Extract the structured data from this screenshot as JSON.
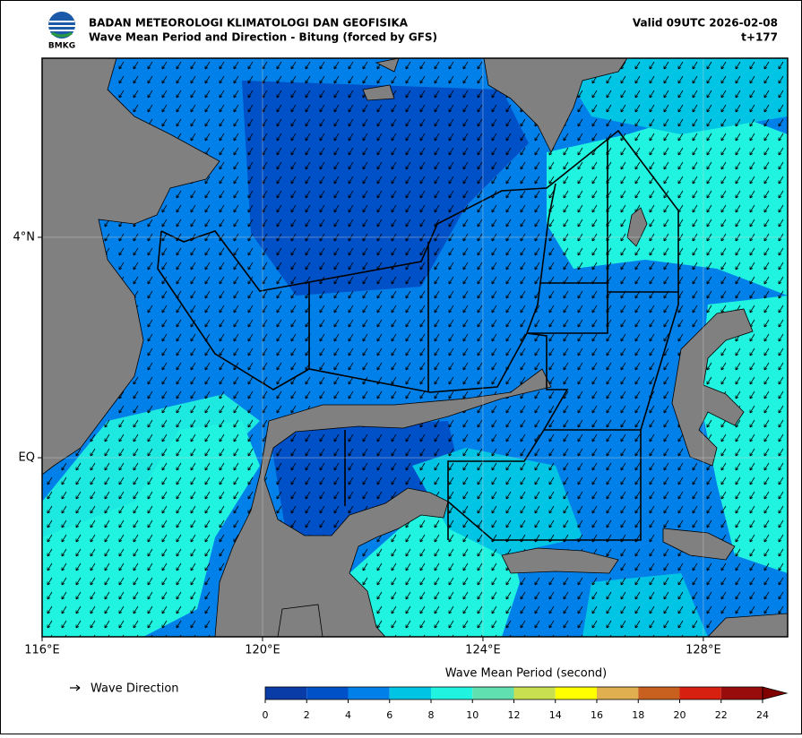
{
  "header": {
    "org": "BADAN METEOROLOGI KLIMATOLOGI DAN GEOFISIKA",
    "title": "Wave Mean Period and Direction - Bitung (forced by GFS)",
    "valid": "Valid 09UTC 2026-02-08",
    "lead": "t+177",
    "logo_text": "BMKG"
  },
  "map": {
    "xlim": [
      116,
      129.53
    ],
    "ylim": [
      -3.25,
      7.25
    ],
    "xticks": [
      {
        "value": 116,
        "label": "116°E"
      },
      {
        "value": 120,
        "label": "120°E"
      },
      {
        "value": 124,
        "label": "124°E"
      },
      {
        "value": 128,
        "label": "128°E"
      }
    ],
    "yticks": [
      {
        "value": 4,
        "label": "4°N"
      },
      {
        "value": 0,
        "label": "EQ"
      }
    ],
    "grid": true
  },
  "legend": {
    "label": "Wave Direction"
  },
  "colorbar": {
    "label": "Wave Mean Period (second)",
    "ticks": [
      0,
      2,
      4,
      6,
      8,
      10,
      12,
      14,
      16,
      18,
      20,
      22,
      24
    ],
    "colors": [
      "#0a3ca8",
      "#0050c8",
      "#0080e8",
      "#00c4e4",
      "#20f4e0",
      "#60e0b0",
      "#c8e050",
      "#ffff00",
      "#e0b050",
      "#c86020",
      "#d82010",
      "#980c0c"
    ],
    "extend_color": "#800000"
  }
}
